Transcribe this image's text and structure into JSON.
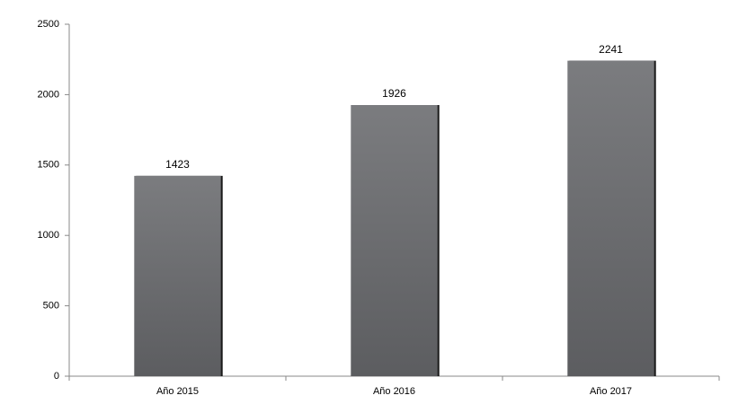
{
  "chart_data": {
    "type": "bar",
    "categories": [
      "Año 2015",
      "Año 2016",
      "Año 2017"
    ],
    "values": [
      1423,
      1926,
      2241
    ],
    "color": "#6d6e71",
    "ylim": [
      0,
      2500
    ],
    "yticks": [
      0,
      500,
      1000,
      1500,
      2000,
      2500
    ],
    "grid": false,
    "data_labels": true
  }
}
